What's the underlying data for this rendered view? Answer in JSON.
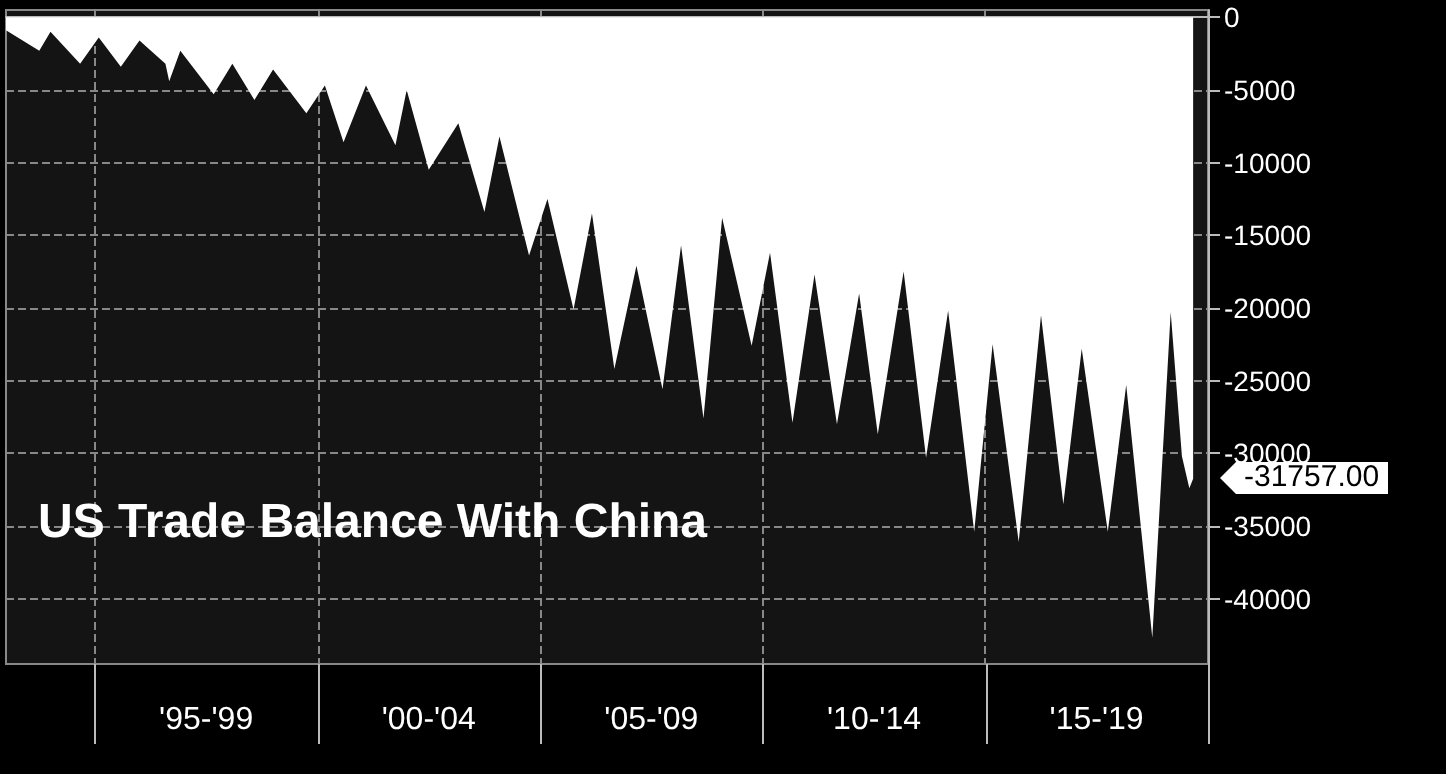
{
  "chart_data": {
    "type": "area",
    "title": "US Trade Balance With China",
    "x": [
      "1993-01",
      "1993-10",
      "1994-01",
      "1994-09",
      "1995-02",
      "1995-08",
      "1996-01",
      "1996-08",
      "1996-09",
      "1996-12",
      "1997-09",
      "1998-02",
      "1998-08",
      "1999-01",
      "1999-10",
      "2000-03",
      "2000-08",
      "2001-02",
      "2001-10",
      "2002-01",
      "2002-07",
      "2003-03",
      "2003-10",
      "2004-02",
      "2004-10",
      "2005-03",
      "2005-10",
      "2006-03",
      "2006-09",
      "2007-03",
      "2007-10",
      "2008-03",
      "2008-09",
      "2009-02",
      "2009-10",
      "2010-03",
      "2010-09",
      "2011-03",
      "2011-09",
      "2012-03",
      "2012-08",
      "2013-03",
      "2013-09",
      "2014-03",
      "2014-10",
      "2015-03",
      "2015-10",
      "2016-04",
      "2016-10",
      "2017-03",
      "2017-10",
      "2018-03",
      "2018-10",
      "2019-03",
      "2019-06",
      "2019-08",
      "2019-09"
    ],
    "series": [
      {
        "color": "#ffffff",
        "values": [
          -900,
          -2300,
          -1000,
          -3200,
          -1400,
          -3400,
          -1600,
          -3200,
          -4400,
          -2300,
          -5300,
          -3200,
          -5700,
          -3600,
          -6600,
          -4700,
          -8600,
          -4700,
          -8800,
          -5000,
          -10500,
          -7300,
          -13400,
          -8200,
          -16400,
          -12500,
          -20100,
          -13500,
          -24200,
          -17100,
          -25600,
          -15700,
          -27600,
          -13800,
          -22600,
          -16200,
          -27900,
          -17700,
          -28000,
          -19000,
          -28700,
          -17500,
          -30300,
          -20200,
          -35400,
          -22500,
          -36100,
          -20500,
          -33500,
          -22800,
          -35400,
          -25300,
          -42700,
          -20300,
          -30200,
          -32400,
          -31757
        ]
      }
    ],
    "xlim": [
      "1993-01",
      "2020-01"
    ],
    "xticks": [
      {
        "value": "1995-01",
        "label": null
      },
      {
        "value": "1997-07",
        "label": "'95-'99"
      },
      {
        "value": "2000-01",
        "label": null
      },
      {
        "value": "2002-07",
        "label": "'00-'04"
      },
      {
        "value": "2005-01",
        "label": null
      },
      {
        "value": "2007-07",
        "label": "'05-'09"
      },
      {
        "value": "2010-01",
        "label": null
      },
      {
        "value": "2012-07",
        "label": "'10-'14"
      },
      {
        "value": "2015-01",
        "label": null
      },
      {
        "value": "2017-07",
        "label": "'15-'19"
      },
      {
        "value": "2020-01",
        "label": null
      }
    ],
    "ylim": [
      -44500,
      500
    ],
    "yticks": [
      0,
      -5000,
      -10000,
      -15000,
      -20000,
      -25000,
      -30000,
      -35000,
      -40000
    ],
    "annotations": [
      {
        "text": "-31757.00",
        "x": "2019-09",
        "y": -31757
      }
    ],
    "grid": true
  }
}
